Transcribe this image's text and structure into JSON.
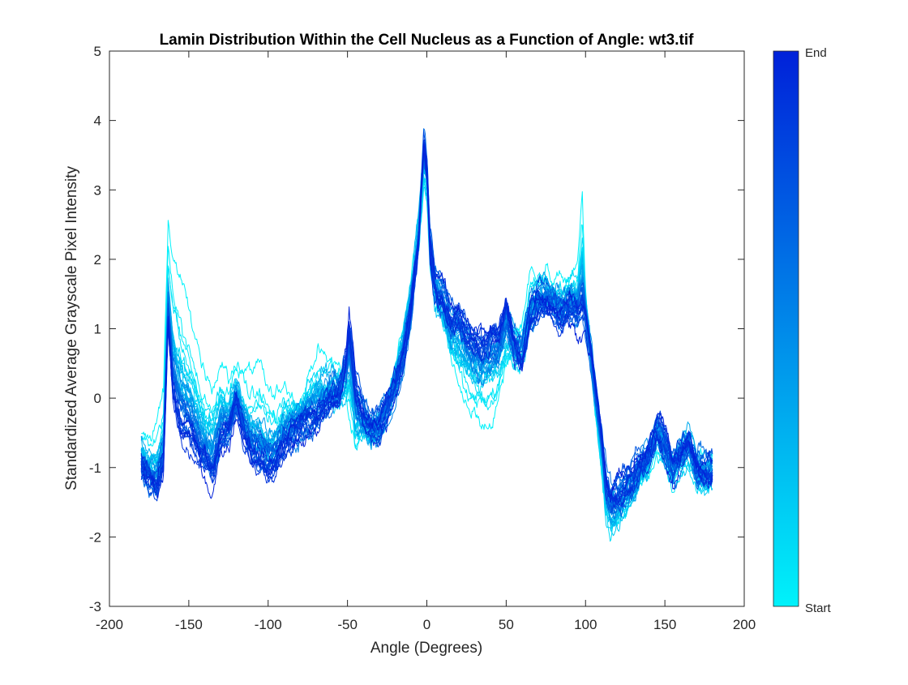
{
  "chart_data": {
    "type": "line",
    "title": "Lamin Distribution Within the Cell Nucleus as a Function of Angle: wt3.tif",
    "xlabel": "Angle (Degrees)",
    "ylabel": "Standardized Average Grayscale Pixel Intensity",
    "xlim": [
      -200,
      200
    ],
    "ylim": [
      -3,
      5
    ],
    "x_ticks": [
      "-200",
      "-150",
      "-100",
      "-50",
      "0",
      "50",
      "100",
      "150",
      "200"
    ],
    "y_ticks": [
      "-3",
      "-2",
      "-1",
      "0",
      "1",
      "2",
      "3",
      "4",
      "5"
    ],
    "grid": false,
    "series_count": 40,
    "early_series_mean_profile": {
      "x": [
        -180,
        -175,
        -170,
        -166,
        -163,
        -160,
        -155,
        -150,
        -145,
        -140,
        -135,
        -130,
        -125,
        -120,
        -115,
        -110,
        -105,
        -100,
        -95,
        -90,
        -85,
        -80,
        -75,
        -70,
        -65,
        -60,
        -55,
        -51,
        -49,
        -45,
        -40,
        -35,
        -30,
        -25,
        -20,
        -15,
        -10,
        -5,
        -2,
        0,
        2,
        5,
        10,
        15,
        20,
        25,
        30,
        35,
        40,
        45,
        50,
        55,
        60,
        65,
        70,
        75,
        80,
        85,
        90,
        95,
        98,
        100,
        103,
        106,
        110,
        113,
        116,
        120,
        125,
        130,
        135,
        140,
        145,
        150,
        155,
        160,
        165,
        170,
        175,
        180
      ],
      "y": [
        -0.6,
        -0.7,
        -0.6,
        -0.2,
        2.3,
        1.9,
        1.6,
        1.1,
        0.8,
        0.4,
        0.3,
        0.5,
        0.2,
        0.4,
        0.2,
        0.1,
        0.2,
        0.0,
        -0.1,
        0.2,
        0.1,
        0.1,
        0.3,
        0.6,
        0.5,
        0.4,
        0.2,
        -0.2,
        -0.5,
        -0.9,
        -0.5,
        -0.6,
        -0.4,
        0.0,
        0.5,
        1.0,
        1.6,
        2.5,
        3.0,
        2.9,
        2.1,
        1.5,
        1.1,
        0.6,
        0.1,
        -0.1,
        -0.2,
        -0.3,
        -0.3,
        -0.2,
        0.3,
        0.6,
        0.9,
        1.5,
        1.6,
        1.8,
        1.7,
        1.7,
        1.8,
        2.0,
        3.0,
        1.5,
        0.6,
        -0.3,
        -1.1,
        -1.7,
        -2.0,
        -2.0,
        -1.8,
        -1.5,
        -1.2,
        -1.0,
        -0.6,
        -0.8,
        -1.1,
        -0.9,
        -0.9,
        -1.1,
        -1.2,
        -1.1
      ]
    },
    "late_series_mean_profile": {
      "x": [
        -180,
        -175,
        -170,
        -166,
        -163,
        -160,
        -155,
        -150,
        -145,
        -140,
        -135,
        -130,
        -125,
        -120,
        -115,
        -110,
        -105,
        -100,
        -95,
        -90,
        -85,
        -80,
        -75,
        -70,
        -65,
        -60,
        -55,
        -51,
        -49,
        -45,
        -40,
        -35,
        -30,
        -25,
        -20,
        -15,
        -10,
        -5,
        -2,
        0,
        2,
        5,
        10,
        15,
        20,
        25,
        30,
        35,
        40,
        45,
        50,
        55,
        60,
        65,
        70,
        75,
        80,
        85,
        90,
        95,
        98,
        100,
        103,
        106,
        110,
        113,
        116,
        120,
        125,
        130,
        135,
        140,
        145,
        150,
        155,
        160,
        165,
        170,
        175,
        180
      ],
      "y": [
        -1.0,
        -1.2,
        -1.3,
        -0.9,
        1.1,
        0.1,
        -0.4,
        -0.5,
        -0.8,
        -1.0,
        -1.2,
        -0.7,
        -0.6,
        -0.1,
        -0.5,
        -0.8,
        -0.9,
        -1.0,
        -0.9,
        -0.7,
        -0.6,
        -0.5,
        -0.4,
        -0.4,
        -0.2,
        0.0,
        0.1,
        0.6,
        1.1,
        0.2,
        -0.2,
        -0.4,
        -0.4,
        -0.2,
        0.1,
        0.5,
        1.2,
        2.3,
        3.7,
        3.4,
        2.3,
        1.7,
        1.5,
        1.2,
        1.3,
        1.0,
        0.8,
        0.7,
        0.9,
        0.9,
        1.3,
        0.8,
        0.6,
        1.2,
        1.4,
        1.4,
        1.3,
        1.1,
        1.2,
        1.1,
        1.2,
        1.1,
        0.7,
        0.2,
        -0.5,
        -1.2,
        -1.4,
        -1.3,
        -1.2,
        -1.1,
        -0.9,
        -0.8,
        -0.5,
        -0.7,
        -1.0,
        -0.8,
        -0.6,
        -1.0,
        -1.0,
        -1.0
      ]
    },
    "colorbar": {
      "top_label": "End",
      "bottom_label": "Start",
      "color_end": "#0021D9",
      "color_start": "#00F2FA"
    }
  }
}
